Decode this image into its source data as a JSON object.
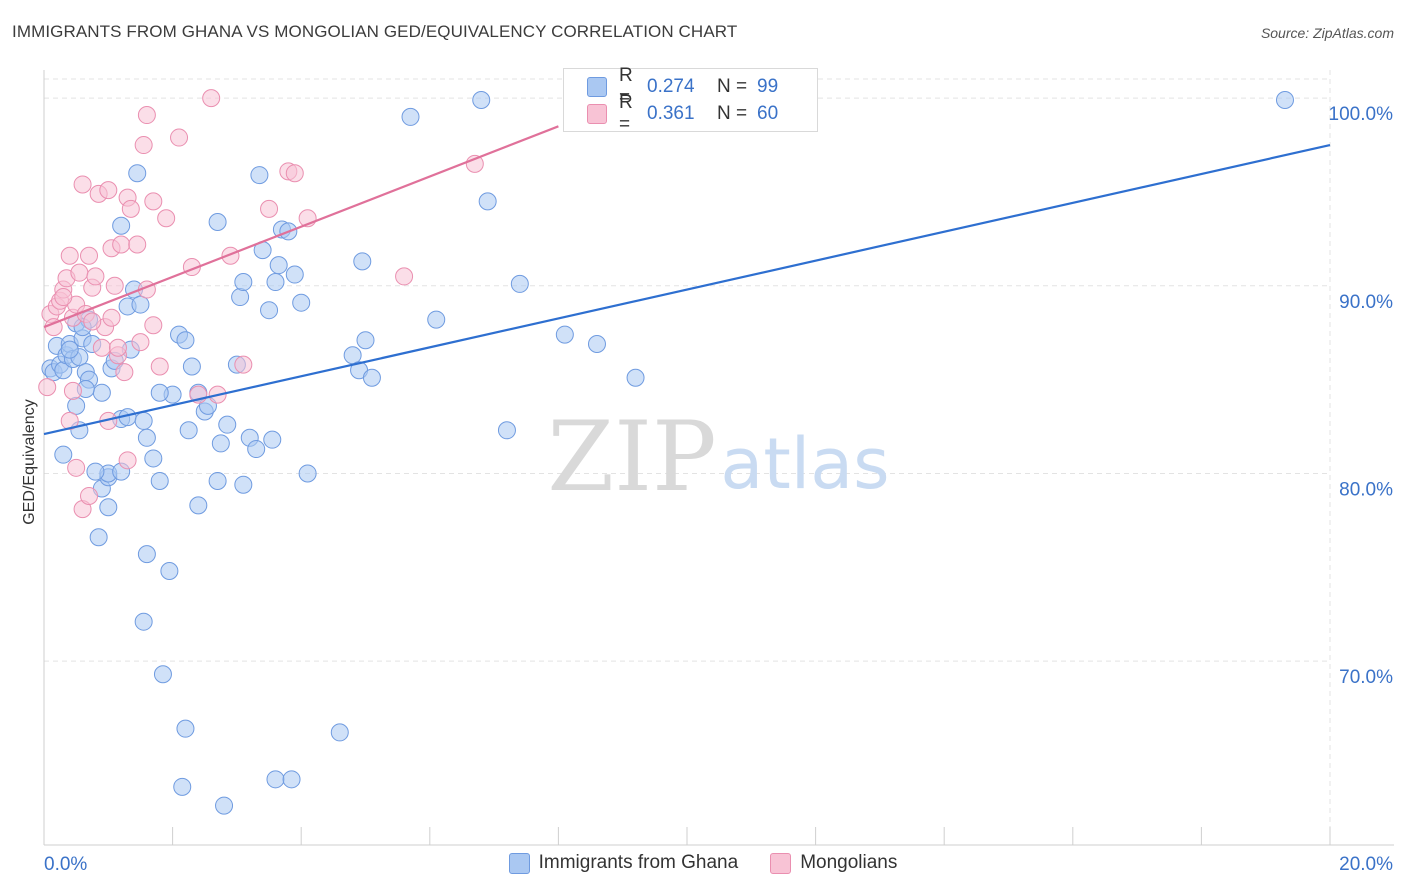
{
  "title": "IMMIGRANTS FROM GHANA VS MONGOLIAN GED/EQUIVALENCY CORRELATION CHART",
  "source": "Source: ZipAtlas.com",
  "watermark": {
    "zip": "ZIP",
    "atlas": "atlas"
  },
  "legend": [
    {
      "r_label": "R =",
      "r_value": "0.274",
      "n_label": "N =",
      "n_value": "99",
      "fill": "#aac8f2",
      "stroke": "#6f9be0"
    },
    {
      "r_label": "R =",
      "r_value": "0.361",
      "n_label": "N =",
      "n_value": "60",
      "fill": "#f8c3d5",
      "stroke": "#ea8fb0"
    }
  ],
  "chart_data": {
    "type": "scatter",
    "title": "IMMIGRANTS FROM GHANA VS MONGOLIAN GED/EQUIVALENCY CORRELATION CHART",
    "xlabel": "",
    "ylabel": "GED/Equivalency",
    "xlim": [
      0,
      20
    ],
    "ylim": [
      60.2,
      101.5
    ],
    "x_tick_labels": [
      "0.0%",
      "20.0%"
    ],
    "y_ticks": [
      70,
      80,
      90,
      100
    ],
    "y_tick_labels": [
      "70.0%",
      "80.0%",
      "90.0%",
      "100.0%"
    ],
    "grid": true,
    "series": [
      {
        "name": "Immigrants from Ghana",
        "color": "#6f9be0",
        "fill": "#aac8f2",
        "trend_color": "#2e6fd0",
        "trend": {
          "x": [
            0,
            20
          ],
          "y": [
            82.1,
            97.5
          ]
        },
        "points": [
          [
            0.1,
            85.6
          ],
          [
            0.15,
            85.4
          ],
          [
            0.2,
            86.8
          ],
          [
            0.25,
            85.8
          ],
          [
            0.3,
            85.5
          ],
          [
            0.35,
            86.3
          ],
          [
            0.4,
            86.9
          ],
          [
            0.45,
            86.1
          ],
          [
            0.5,
            88.0
          ],
          [
            0.55,
            86.2
          ],
          [
            0.6,
            87.2
          ],
          [
            0.65,
            85.4
          ],
          [
            0.7,
            85.0
          ],
          [
            0.75,
            86.9
          ],
          [
            0.3,
            81.0
          ],
          [
            0.5,
            83.6
          ],
          [
            0.7,
            88.2
          ],
          [
            0.9,
            84.3
          ],
          [
            1.05,
            85.6
          ],
          [
            1.1,
            86.0
          ],
          [
            1.2,
            93.2
          ],
          [
            1.3,
            88.9
          ],
          [
            1.4,
            89.8
          ],
          [
            1.45,
            96.0
          ],
          [
            1.5,
            89.0
          ],
          [
            1.35,
            86.6
          ],
          [
            1.2,
            82.9
          ],
          [
            0.9,
            79.2
          ],
          [
            1.0,
            79.8
          ],
          [
            1.3,
            83.0
          ],
          [
            1.55,
            82.8
          ],
          [
            1.6,
            81.9
          ],
          [
            1.7,
            80.8
          ],
          [
            1.8,
            79.6
          ],
          [
            1.0,
            78.2
          ],
          [
            0.85,
            76.6
          ],
          [
            1.6,
            75.7
          ],
          [
            1.95,
            74.8
          ],
          [
            1.55,
            72.1
          ],
          [
            1.85,
            69.3
          ],
          [
            2.1,
            87.4
          ],
          [
            2.2,
            87.1
          ],
          [
            2.3,
            85.7
          ],
          [
            2.4,
            84.3
          ],
          [
            2.5,
            83.3
          ],
          [
            2.55,
            83.6
          ],
          [
            2.7,
            93.4
          ],
          [
            2.75,
            81.6
          ],
          [
            2.85,
            82.6
          ],
          [
            3.0,
            85.8
          ],
          [
            3.05,
            89.4
          ],
          [
            3.1,
            90.2
          ],
          [
            3.2,
            81.9
          ],
          [
            3.3,
            81.3
          ],
          [
            3.35,
            95.9
          ],
          [
            3.4,
            91.9
          ],
          [
            3.5,
            88.7
          ],
          [
            3.6,
            90.2
          ],
          [
            3.65,
            91.1
          ],
          [
            3.7,
            93.0
          ],
          [
            3.8,
            92.9
          ],
          [
            3.9,
            90.6
          ],
          [
            4.0,
            89.1
          ],
          [
            4.1,
            80.0
          ],
          [
            4.8,
            86.3
          ],
          [
            4.9,
            85.5
          ],
          [
            4.95,
            91.3
          ],
          [
            5.0,
            87.1
          ],
          [
            5.1,
            85.1
          ],
          [
            5.7,
            99.0
          ],
          [
            6.1,
            88.2
          ],
          [
            6.8,
            99.9
          ],
          [
            6.9,
            94.5
          ],
          [
            7.2,
            82.3
          ],
          [
            7.4,
            90.1
          ],
          [
            8.1,
            87.4
          ],
          [
            8.6,
            86.9
          ],
          [
            9.2,
            85.1
          ],
          [
            19.3,
            99.9
          ],
          [
            1.0,
            80.0
          ],
          [
            2.7,
            79.6
          ],
          [
            2.0,
            84.2
          ],
          [
            1.8,
            84.3
          ],
          [
            2.25,
            82.3
          ],
          [
            2.4,
            78.3
          ],
          [
            3.1,
            79.4
          ],
          [
            3.55,
            81.8
          ],
          [
            2.2,
            66.4
          ],
          [
            4.6,
            66.2
          ],
          [
            3.6,
            63.7
          ],
          [
            3.85,
            63.7
          ],
          [
            2.15,
            63.3
          ],
          [
            2.8,
            62.3
          ],
          [
            0.55,
            82.3
          ],
          [
            0.8,
            80.1
          ],
          [
            1.2,
            80.1
          ],
          [
            0.4,
            86.6
          ],
          [
            0.6,
            87.8
          ],
          [
            0.65,
            84.5
          ]
        ]
      },
      {
        "name": "Mongolians",
        "color": "#ea8fb0",
        "fill": "#f8c3d5",
        "trend_color": "#e0719a",
        "trend": {
          "x": [
            0,
            8.0
          ],
          "y": [
            87.8,
            98.5
          ]
        },
        "points": [
          [
            0.05,
            84.6
          ],
          [
            0.1,
            88.5
          ],
          [
            0.15,
            87.8
          ],
          [
            0.2,
            88.9
          ],
          [
            0.25,
            89.2
          ],
          [
            0.3,
            89.8
          ],
          [
            0.35,
            90.4
          ],
          [
            0.4,
            91.6
          ],
          [
            0.45,
            88.3
          ],
          [
            0.5,
            89.0
          ],
          [
            0.55,
            90.7
          ],
          [
            0.6,
            95.4
          ],
          [
            0.65,
            88.5
          ],
          [
            0.7,
            91.6
          ],
          [
            0.75,
            89.9
          ],
          [
            0.8,
            90.5
          ],
          [
            0.85,
            94.9
          ],
          [
            0.9,
            86.7
          ],
          [
            1.0,
            95.1
          ],
          [
            1.05,
            92.0
          ],
          [
            1.1,
            90.0
          ],
          [
            1.15,
            86.3
          ],
          [
            1.2,
            92.2
          ],
          [
            1.3,
            94.7
          ],
          [
            1.35,
            94.1
          ],
          [
            1.45,
            92.2
          ],
          [
            1.55,
            97.5
          ],
          [
            1.6,
            89.8
          ],
          [
            1.7,
            94.5
          ],
          [
            1.9,
            93.6
          ],
          [
            2.1,
            97.9
          ],
          [
            2.3,
            91.0
          ],
          [
            2.6,
            100.0
          ],
          [
            2.7,
            84.2
          ],
          [
            2.9,
            91.6
          ],
          [
            3.1,
            85.8
          ],
          [
            3.5,
            94.1
          ],
          [
            3.8,
            96.1
          ],
          [
            3.9,
            96.0
          ],
          [
            4.1,
            93.6
          ],
          [
            5.6,
            90.5
          ],
          [
            6.7,
            96.5
          ],
          [
            0.4,
            82.8
          ],
          [
            0.5,
            80.3
          ],
          [
            0.6,
            78.1
          ],
          [
            0.7,
            78.8
          ],
          [
            1.0,
            82.8
          ],
          [
            1.3,
            80.7
          ],
          [
            1.6,
            99.1
          ],
          [
            1.8,
            85.7
          ],
          [
            0.95,
            87.8
          ],
          [
            1.15,
            86.7
          ],
          [
            1.5,
            87.0
          ],
          [
            0.3,
            89.4
          ],
          [
            0.75,
            88.1
          ],
          [
            1.05,
            88.3
          ],
          [
            1.25,
            85.4
          ],
          [
            0.45,
            84.4
          ],
          [
            2.4,
            84.2
          ],
          [
            1.7,
            87.9
          ]
        ]
      }
    ]
  },
  "bottom_legend": [
    {
      "label": "Immigrants from Ghana",
      "fill": "#aac8f2",
      "stroke": "#6f9be0"
    },
    {
      "label": "Mongolians",
      "fill": "#f8c3d5",
      "stroke": "#ea8fb0"
    }
  ]
}
